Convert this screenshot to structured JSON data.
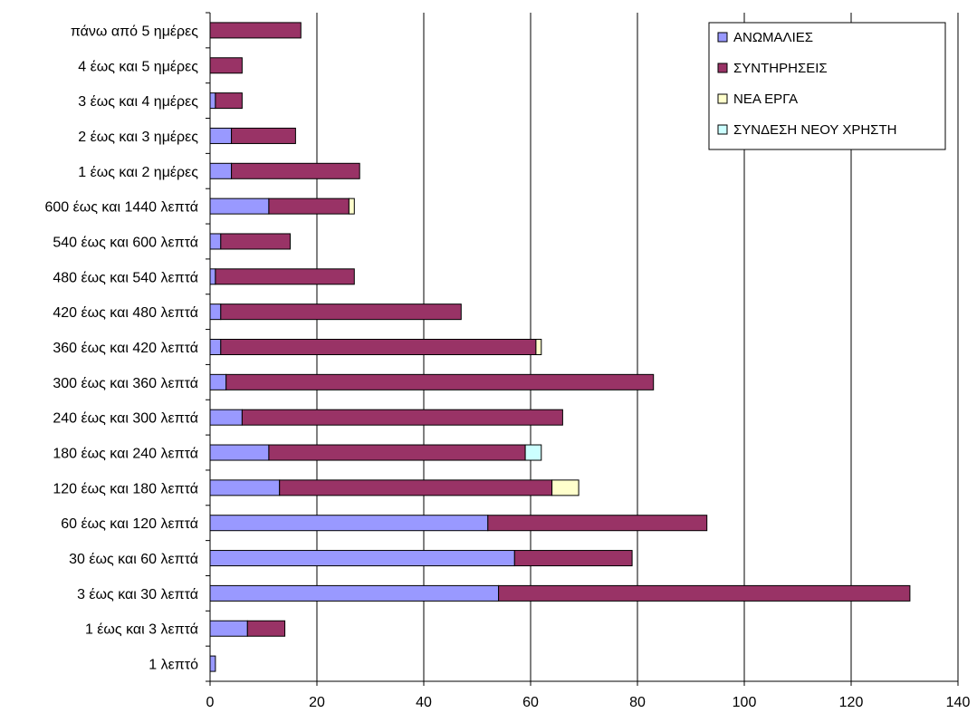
{
  "chart_data": {
    "type": "bar",
    "orientation": "horizontal",
    "stacked": true,
    "categories": [
      "1 λεπτό",
      "1 έως και 3 λεπτά",
      "3 έως και 30 λεπτά",
      "30 έως και 60 λεπτά",
      "60 έως και 120 λεπτά",
      "120 έως και 180 λεπτά",
      "180 έως και 240 λεπτά",
      "240 έως και 300 λεπτά",
      "300 έως και 360 λεπτά",
      "360 έως και 420 λεπτά",
      "420 έως και 480 λεπτά",
      "480 έως και 540 λεπτά",
      "540 έως και 600 λεπτά",
      "600 έως και 1440 λεπτά",
      "1 έως και 2 ημέρες",
      "2 έως και 3 ημέρες",
      "3 έως και 4 ημέρες",
      "4 έως και 5 ημέρες",
      "πάνω από 5 ημέρες"
    ],
    "series": [
      {
        "name": "ΑΝΩΜΑΛΙΕΣ",
        "color": "#9999ff",
        "values": [
          1,
          7,
          54,
          57,
          52,
          13,
          11,
          6,
          3,
          2,
          2,
          1,
          2,
          11,
          4,
          4,
          1,
          0,
          0
        ]
      },
      {
        "name": "ΣΥΝΤΗΡΗΣΕΙΣ",
        "color": "#993366",
        "values": [
          0,
          7,
          77,
          22,
          41,
          51,
          48,
          60,
          80,
          59,
          45,
          26,
          13,
          15,
          24,
          12,
          5,
          6,
          17
        ]
      },
      {
        "name": "ΝΕΑ ΕΡΓΑ",
        "color": "#ffffcc",
        "values": [
          0,
          0,
          0,
          0,
          0,
          5,
          0,
          0,
          0,
          1,
          0,
          0,
          0,
          1,
          0,
          0,
          0,
          0,
          0
        ]
      },
      {
        "name": "ΣΥΝΔΕΣΗ ΝΕΟΥ ΧΡΗΣΤΗ",
        "color": "#ccffff",
        "values": [
          0,
          0,
          0,
          0,
          0,
          0,
          3,
          0,
          0,
          0,
          0,
          0,
          0,
          0,
          0,
          0,
          0,
          0,
          0
        ]
      }
    ],
    "xlim": [
      0,
      140
    ],
    "xticks": [
      0,
      20,
      40,
      60,
      80,
      100,
      120,
      140
    ],
    "grid": "vertical",
    "legend_position": "top-right",
    "title": "",
    "xlabel": "",
    "ylabel": ""
  }
}
